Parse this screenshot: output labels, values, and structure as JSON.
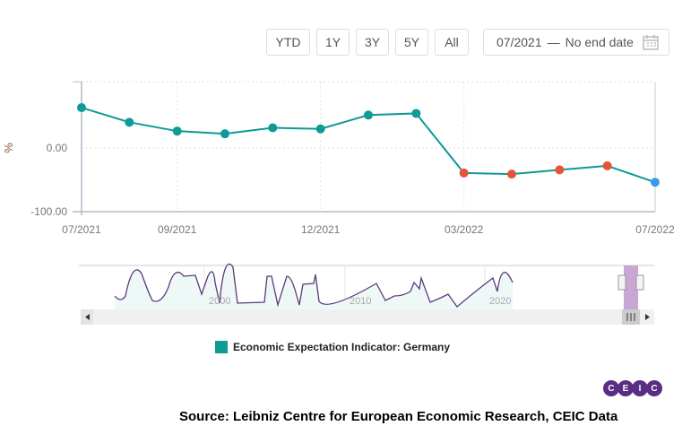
{
  "range_buttons": [
    "YTD",
    "1Y",
    "3Y",
    "5Y",
    "All"
  ],
  "date_range": {
    "start": "07/2021",
    "sep": "—",
    "end": "No end date",
    "icon": "calendar-icon"
  },
  "chart_data": {
    "type": "line",
    "ylabel": "%",
    "ylim": [
      -100,
      104
    ],
    "yticks": [
      "0.00",
      "-100.00"
    ],
    "ytick_values": [
      0,
      -100
    ],
    "xticks": [
      "07/2021",
      "09/2021",
      "12/2021",
      "03/2022",
      "07/2022"
    ],
    "xtick_index": [
      0,
      2,
      5,
      8,
      12
    ],
    "x": [
      "07/2021",
      "08/2021",
      "09/2021",
      "10/2021",
      "11/2021",
      "12/2021",
      "01/2022",
      "02/2022",
      "03/2022",
      "04/2022",
      "05/2022",
      "06/2022",
      "07/2022"
    ],
    "series": [
      {
        "name": "Economic Expectation Indicator: Germany",
        "values": [
          63.3,
          40.4,
          26.5,
          22.3,
          31.7,
          29.9,
          51.7,
          54.3,
          -39.3,
          -41.0,
          -34.3,
          -28.0,
          -53.8
        ]
      }
    ],
    "point_colors": {
      "positive": "#0e9a95",
      "negative": "#e5533d",
      "latest": "#3a9be8"
    },
    "grid": true,
    "legend": "bottom-center"
  },
  "navigator": {
    "labels": [
      "2000",
      "2010",
      "2020"
    ]
  },
  "logo": [
    "C",
    "E",
    "I",
    "C"
  ],
  "source": "Source: Leibniz Centre for European Economic Research, CEIC Data"
}
